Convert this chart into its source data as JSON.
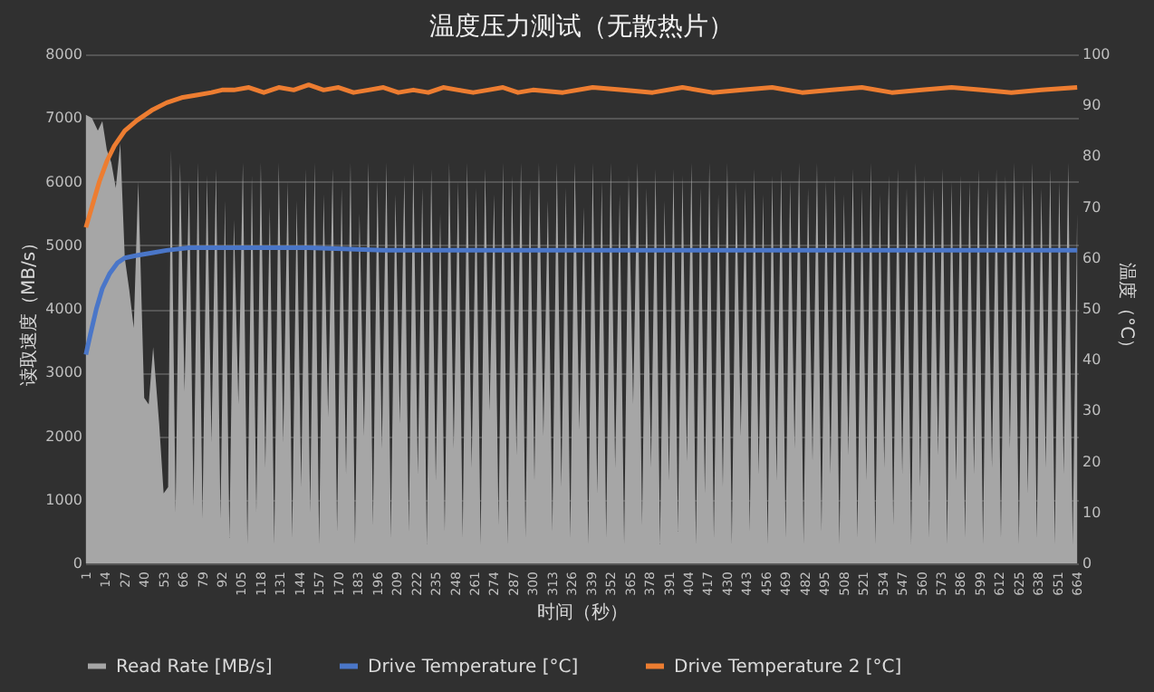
{
  "chart_data": {
    "type": "line",
    "title": "温度压力测试（无散热片）",
    "xlabel": "时间（秒）",
    "ylabel": "读取速度（MB/s）",
    "y2label": "温度（°C）",
    "xlim": [
      0.5,
      664.5
    ],
    "xticks": [
      1,
      14,
      27,
      40,
      53,
      66,
      79,
      92,
      105,
      118,
      131,
      144,
      157,
      170,
      183,
      196,
      209,
      222,
      235,
      248,
      261,
      274,
      287,
      300,
      313,
      326,
      339,
      352,
      365,
      378,
      391,
      404,
      417,
      430,
      443,
      456,
      469,
      482,
      495,
      508,
      521,
      534,
      547,
      560,
      573,
      586,
      599,
      612,
      625,
      638,
      651,
      664
    ],
    "ylim": [
      0,
      8000
    ],
    "yticks": [
      0,
      1000,
      2000,
      3000,
      4000,
      5000,
      6000,
      7000,
      8000
    ],
    "y2lim": [
      0,
      100
    ],
    "y2ticks": [
      0,
      10,
      20,
      30,
      40,
      50,
      60,
      70,
      80,
      90,
      100
    ],
    "grid": "y",
    "legend": "bottom",
    "series": [
      {
        "name": "Read Rate [MB/s]",
        "type": "area",
        "color": "#a6a6a6",
        "x": [
          1,
          5,
          9,
          12,
          15,
          18,
          21,
          24,
          27,
          30,
          33,
          36,
          40,
          43,
          46,
          50,
          53,
          56,
          58,
          61,
          64,
          67,
          70,
          73,
          76,
          79,
          82,
          85,
          88,
          91,
          94,
          97,
          100,
          103,
          106,
          109,
          112,
          115,
          118,
          121,
          124,
          127,
          130,
          133,
          136,
          139,
          142,
          145,
          148,
          151,
          154,
          157,
          160,
          163,
          166,
          169,
          172,
          175,
          178,
          181,
          184,
          187,
          190,
          193,
          196,
          199,
          202,
          205,
          208,
          211,
          214,
          217,
          220,
          223,
          226,
          229,
          232,
          235,
          238,
          241,
          244,
          247,
          250,
          253,
          256,
          259,
          262,
          265,
          268,
          271,
          274,
          277,
          280,
          283,
          286,
          289,
          292,
          295,
          298,
          301,
          304,
          307,
          310,
          313,
          316,
          319,
          322,
          325,
          328,
          331,
          334,
          337,
          340,
          343,
          346,
          349,
          352,
          355,
          358,
          361,
          364,
          367,
          370,
          373,
          376,
          379,
          382,
          385,
          388,
          391,
          394,
          397,
          400,
          403,
          406,
          409,
          412,
          415,
          418,
          421,
          424,
          427,
          430,
          433,
          436,
          439,
          442,
          445,
          448,
          451,
          454,
          457,
          460,
          463,
          466,
          469,
          472,
          475,
          478,
          481,
          484,
          487,
          490,
          493,
          496,
          499,
          502,
          505,
          508,
          511,
          514,
          517,
          520,
          523,
          526,
          529,
          532,
          535,
          538,
          541,
          544,
          547,
          550,
          553,
          556,
          559,
          562,
          565,
          568,
          571,
          574,
          577,
          580,
          583,
          586,
          589,
          592,
          595,
          598,
          601,
          604,
          607,
          610,
          613,
          616,
          619,
          622,
          625,
          628,
          631,
          634,
          637,
          640,
          643,
          646,
          649,
          652,
          655,
          658,
          661,
          664
        ],
        "values": [
          7050,
          7000,
          6800,
          6950,
          6500,
          6300,
          5900,
          6600,
          4800,
          4300,
          3700,
          6000,
          2600,
          2500,
          3400,
          2200,
          1100,
          1200,
          6500,
          800,
          6300,
          2700,
          6000,
          900,
          6300,
          700,
          6100,
          1900,
          6200,
          700,
          5700,
          400,
          5400,
          2500,
          6300,
          300,
          6100,
          800,
          6300,
          1500,
          5600,
          300,
          6300,
          1900,
          6000,
          400,
          5700,
          1200,
          6200,
          800,
          6300,
          300,
          5800,
          2300,
          6200,
          500,
          5900,
          1400,
          6300,
          300,
          5500,
          2000,
          6300,
          600,
          6000,
          1800,
          6300,
          400,
          5800,
          2200,
          6100,
          500,
          6300,
          1400,
          5900,
          300,
          6200,
          1300,
          5500,
          500,
          6300,
          1800,
          6000,
          400,
          6300,
          1500,
          5900,
          300,
          6200,
          2400,
          5800,
          600,
          6300,
          300,
          6100,
          1700,
          6300,
          400,
          5900,
          1300,
          6300,
          2000,
          5700,
          500,
          6300,
          1200,
          5900,
          400,
          6300,
          2100,
          5600,
          300,
          6300,
          1100,
          6000,
          400,
          6300,
          1500,
          5800,
          300,
          6100,
          2500,
          6300,
          600,
          5900,
          1500,
          6200,
          300,
          5700,
          1300,
          6200,
          500,
          6100,
          1600,
          6300,
          300,
          5900,
          1100,
          6300,
          400,
          5800,
          1200,
          6300,
          300,
          6000,
          2000,
          5900,
          500,
          6200,
          1400,
          5800,
          300,
          6100,
          1300,
          6200,
          400,
          6000,
          1800,
          6300,
          300,
          5900,
          1600,
          6300,
          500,
          6000,
          1400,
          6100,
          300,
          5800,
          1700,
          6200,
          400,
          5900,
          1300,
          6300,
          300,
          5800,
          1500,
          6100,
          600,
          6200,
          1400,
          5900,
          300,
          6300,
          1200,
          6100,
          400,
          5900,
          1700,
          6200,
          300,
          6000,
          1300,
          6100,
          400,
          6000,
          1400,
          6200,
          300,
          5900,
          1500,
          6200,
          400,
          6100,
          1800,
          6300,
          300,
          6000,
          1100,
          6300,
          400,
          5900,
          1500,
          6200,
          300,
          6000,
          1400,
          6300,
          300,
          5500
        ]
      },
      {
        "name": "Drive Temperature [°C]",
        "axis": "y2",
        "color": "#4a76c8",
        "x": [
          1,
          4,
          8,
          12,
          17,
          22,
          27,
          35,
          45,
          55,
          70,
          100,
          150,
          200,
          300,
          400,
          500,
          600,
          664
        ],
        "values": [
          41,
          45,
          50,
          54,
          57,
          59,
          60,
          60.5,
          61,
          61.5,
          62,
          62,
          62,
          61.5,
          61.5,
          61.5,
          61.5,
          61.5,
          61.5
        ]
      },
      {
        "name": "Drive Temperature 2 [°C]",
        "axis": "y2",
        "color": "#ed7d31",
        "x": [
          1,
          5,
          10,
          15,
          20,
          27,
          35,
          45,
          55,
          65,
          75,
          85,
          92,
          100,
          110,
          120,
          130,
          140,
          150,
          160,
          170,
          180,
          190,
          200,
          210,
          220,
          230,
          240,
          250,
          260,
          270,
          280,
          290,
          300,
          320,
          340,
          360,
          380,
          400,
          420,
          440,
          460,
          480,
          500,
          520,
          540,
          560,
          580,
          600,
          620,
          640,
          664
        ],
        "values": [
          66,
          70,
          75,
          79,
          82,
          85,
          87,
          89,
          90.5,
          91.5,
          92,
          92.5,
          93,
          93,
          93.5,
          92.5,
          93.5,
          93,
          94,
          93,
          93.5,
          92.5,
          93,
          93.5,
          92.5,
          93,
          92.5,
          93.5,
          93,
          92.5,
          93,
          93.5,
          92.5,
          93,
          92.5,
          93.5,
          93,
          92.5,
          93.5,
          92.5,
          93,
          93.5,
          92.5,
          93,
          93.5,
          92.5,
          93,
          93.5,
          93,
          92.5,
          93,
          93.5
        ]
      }
    ]
  }
}
